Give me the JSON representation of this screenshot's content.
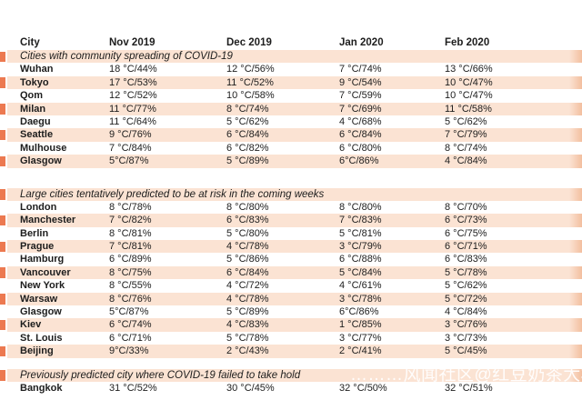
{
  "colors": {
    "band": "#fbe3d3",
    "tab": "#ec7950",
    "edge": "#f0b38e",
    "ink": "#1d1d1d"
  },
  "watermark": {
    "text": "………风闻社区@红豆奶茶大杯"
  },
  "table": {
    "columns": [
      "City",
      "Nov 2019",
      "Dec 2019",
      "Jan 2020",
      "Feb 2020"
    ],
    "sections": [
      {
        "header": "Cities with community spreading of COVID-19",
        "rows": [
          {
            "city": "Wuhan",
            "values": [
              "18 °C/44%",
              "12 °C/56%",
              "7 °C/74%",
              "13 °C/66%"
            ]
          },
          {
            "city": "Tokyo",
            "values": [
              "17 °C/53%",
              "11 °C/52%",
              "9 °C/54%",
              "10 °C/47%"
            ]
          },
          {
            "city": "Qom",
            "values": [
              "12 °C/52%",
              "10 °C/58%",
              "7 °C/59%",
              "10 °C/47%"
            ]
          },
          {
            "city": "Milan",
            "values": [
              "11 °C/77%",
              "8 °C/74%",
              "7 °C/69%",
              "11 °C/58%"
            ]
          },
          {
            "city": "Daegu",
            "values": [
              "11 °C/64%",
              "5 °C/62%",
              "4 °C/68%",
              "5 °C/62%"
            ]
          },
          {
            "city": "Seattle",
            "values": [
              "9 °C/76%",
              "6 °C/84%",
              "6 °C/84%",
              "7 °C/79%"
            ]
          },
          {
            "city": "Mulhouse",
            "values": [
              "7 °C/84%",
              "6 °C/82%",
              "6 °C/80%",
              "8 °C/74%"
            ]
          },
          {
            "city": "Glasgow",
            "values": [
              "5°C/87%",
              "5 °C/89%",
              "6°C/86%",
              "4 °C/84%"
            ]
          }
        ]
      },
      {
        "header": "Large cities tentatively predicted to be at risk in the coming weeks",
        "rows": [
          {
            "city": "London",
            "values": [
              "8 °C/78%",
              "8 °C/80%",
              "8 °C/80%",
              "8 °C/70%"
            ]
          },
          {
            "city": "Manchester",
            "values": [
              "7 °C/82%",
              "6 °C/83%",
              "7 °C/83%",
              "6 °C/73%"
            ]
          },
          {
            "city": "Berlin",
            "values": [
              "8 °C/81%",
              "5 °C/80%",
              "5 °C/81%",
              "6 °C/75%"
            ]
          },
          {
            "city": "Prague",
            "values": [
              "7 °C/81%",
              "4 °C/78%",
              "3 °C/79%",
              "6 °C/71%"
            ]
          },
          {
            "city": "Hamburg",
            "values": [
              "6 °C/89%",
              "5 °C/86%",
              "6 °C/88%",
              "6 °C/83%"
            ]
          },
          {
            "city": "Vancouver",
            "values": [
              "8 °C/75%",
              "6 °C/84%",
              "5 °C/84%",
              "5 °C/78%"
            ]
          },
          {
            "city": "New York",
            "values": [
              "8 °C/55%",
              "4 °C/72%",
              "4 °C/61%",
              "5 °C/62%"
            ]
          },
          {
            "city": "Warsaw",
            "values": [
              "8 °C/76%",
              "4 °C/78%",
              "3 °C/78%",
              "5 °C/72%"
            ]
          },
          {
            "city": "Glasgow",
            "values": [
              "5°C/87%",
              "5 °C/89%",
              "6°C/86%",
              "4 °C/84%"
            ]
          },
          {
            "city": "Kiev",
            "values": [
              "6 °C/74%",
              "4 °C/83%",
              "1 °C/85%",
              "3 °C/76%"
            ]
          },
          {
            "city": "St. Louis",
            "values": [
              "6 °C/71%",
              "5 °C/78%",
              "3 °C/77%",
              "3 °C/73%"
            ]
          },
          {
            "city": "Beijing",
            "values": [
              "9°C/33%",
              "2 °C/43%",
              "2 °C/41%",
              "5 °C/45%"
            ]
          }
        ]
      },
      {
        "header": "Previously predicted city where COVID-19 failed to take hold",
        "rows": [
          {
            "city": "Bangkok",
            "values": [
              "31 °C/52%",
              "30 °C/45%",
              "32 °C/50%",
              "32 °C/51%"
            ]
          }
        ]
      }
    ]
  }
}
